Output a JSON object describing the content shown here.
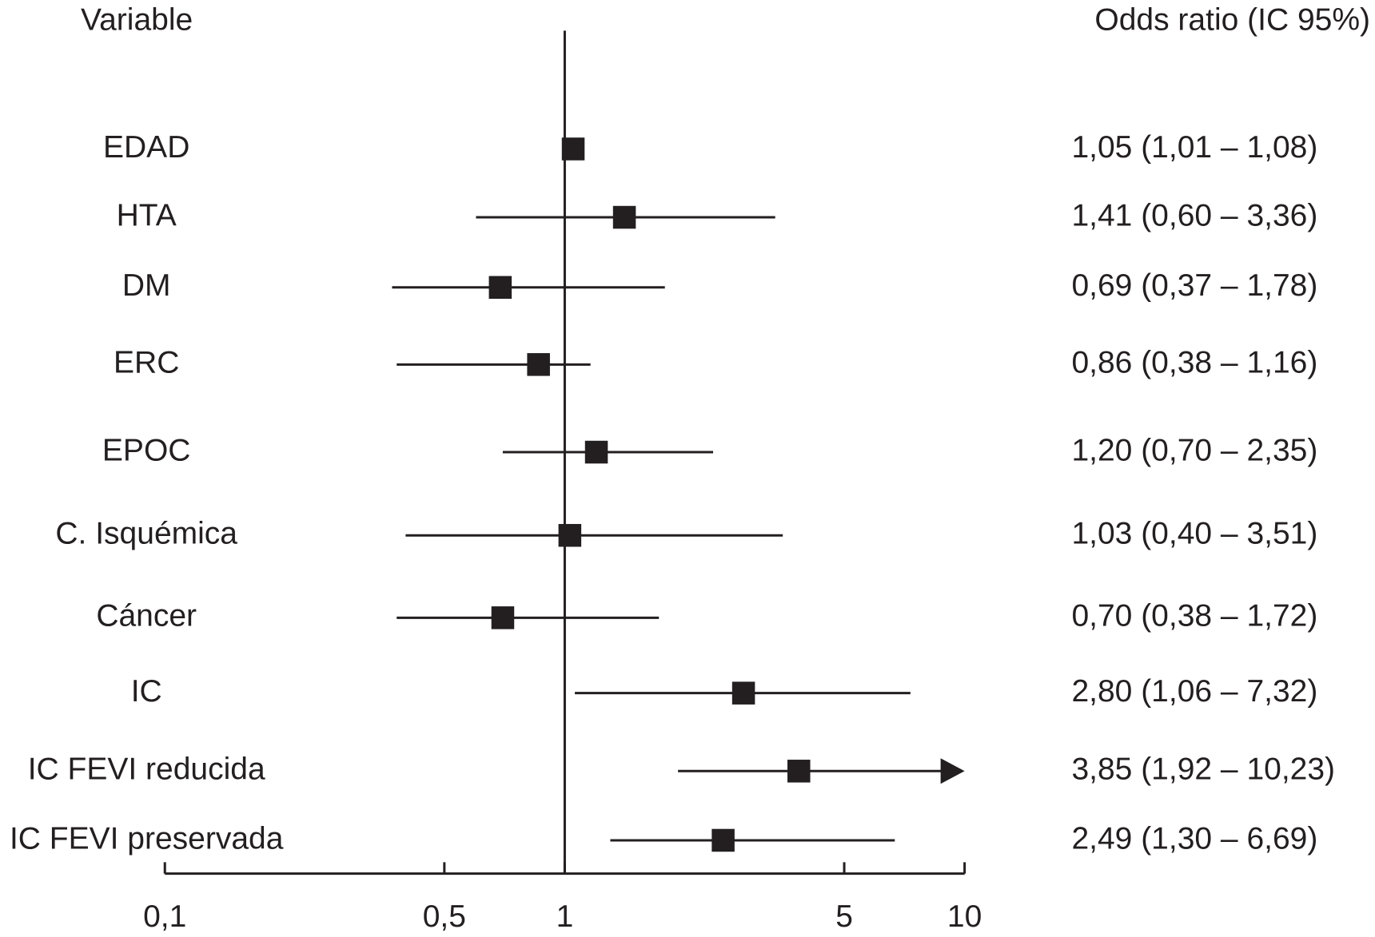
{
  "chart_data": {
    "type": "forest",
    "label_header": "Variable",
    "value_header": "Odds ratio (IC 95%)",
    "categories": [
      "EDAD",
      "HTA",
      "DM",
      "ERC",
      "EPOC",
      "C. Isquémica",
      "Cáncer",
      "IC",
      "IC FEVI reducida",
      "IC FEVI preservada"
    ],
    "values": [
      1.05,
      1.41,
      0.69,
      0.86,
      1.2,
      1.03,
      0.7,
      2.8,
      3.85,
      2.49
    ],
    "lower": [
      1.01,
      0.6,
      0.37,
      0.38,
      0.7,
      0.4,
      0.38,
      1.06,
      1.92,
      1.3
    ],
    "upper": [
      1.08,
      3.36,
      1.78,
      1.16,
      2.35,
      3.51,
      1.72,
      7.32,
      10.23,
      6.69
    ],
    "value_labels": [
      "1,05 (1,01 – 1,08)",
      "1,41 (0,60 – 3,36)",
      "0,69 (0,37 – 1,78)",
      "0,86 (0,38 – 1,16)",
      "1,20 (0,70 – 2,35)",
      "1,03 (0,40 – 3,51)",
      "0,70 (0,38 – 1,72)",
      "2,80 (1,06 – 7,32)",
      "3,85 (1,92 – 10,23)",
      "2,49 (1,30 – 6,69)"
    ],
    "xlim": [
      0.1,
      10
    ],
    "xticks": [
      {
        "value": 0.1,
        "label": "0,1"
      },
      {
        "value": 0.5,
        "label": "0,5"
      },
      1,
      5,
      10
    ],
    "reference": 1,
    "log_scale": true,
    "color": "#231f20"
  }
}
